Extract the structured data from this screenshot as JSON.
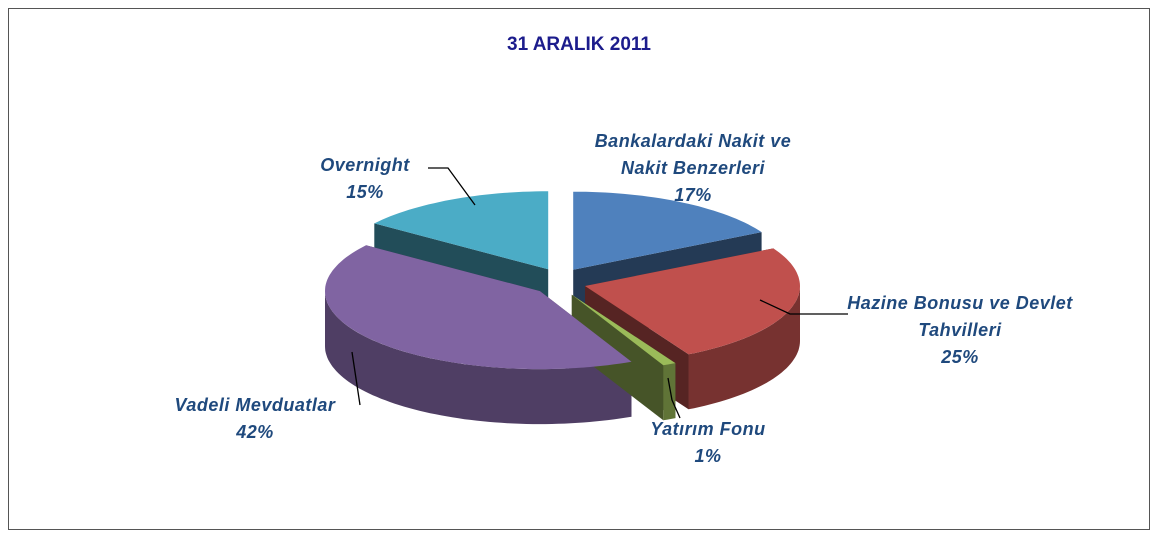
{
  "chart_data": {
    "type": "pie",
    "title": "31 ARALIK 2011",
    "categories": [
      "Bankalardaki Nakit ve Nakit Benzerleri",
      "Hazine Bonusu ve Devlet Tahvilleri",
      "Yatırım Fonu",
      "Vadeli Mevduatlar",
      "Overnight"
    ],
    "values": [
      17,
      25,
      1,
      42,
      15
    ],
    "value_labels": [
      "17%",
      "25%",
      "1%",
      "42%",
      "15%"
    ],
    "colors": [
      "#4f81bd",
      "#c0504d",
      "#9bbb59",
      "#8064a2",
      "#4bacc6"
    ]
  }
}
